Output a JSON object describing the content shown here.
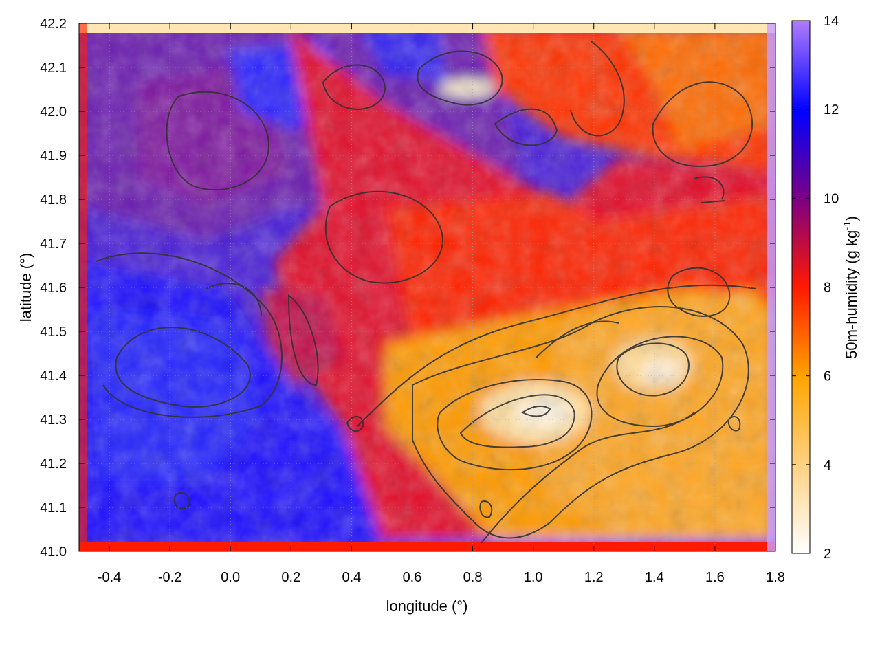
{
  "chart_data": {
    "type": "heatmap",
    "title": "",
    "xlabel": "longitude (°)",
    "ylabel": "latitude (°)",
    "xlim": [
      -0.5,
      1.8
    ],
    "ylim": [
      41.0,
      42.2
    ],
    "xticks": [
      "-0.4",
      "-0.2",
      "0.0",
      "0.2",
      "0.4",
      "0.6",
      "0.8",
      "1.0",
      "1.2",
      "1.4",
      "1.6",
      "1.8"
    ],
    "xtick_values": [
      -0.4,
      -0.2,
      0.0,
      0.2,
      0.4,
      0.6,
      0.8,
      1.0,
      1.2,
      1.4,
      1.6,
      1.8
    ],
    "yticks": [
      "41.0",
      "41.1",
      "41.2",
      "41.3",
      "41.4",
      "41.5",
      "41.6",
      "41.7",
      "41.8",
      "41.9",
      "42.0",
      "42.1",
      "42.2"
    ],
    "ytick_values": [
      41.0,
      41.1,
      41.2,
      41.3,
      41.4,
      41.5,
      41.6,
      41.7,
      41.8,
      41.9,
      42.0,
      42.1,
      42.2
    ],
    "grid": true,
    "colorbar": {
      "label": "50m-humidity (g kg",
      "label_exponent": "-1",
      "label_tail": ")",
      "range": [
        2,
        14
      ],
      "ticks": [
        "2",
        "4",
        "6",
        "8",
        "10",
        "12",
        "14"
      ],
      "tick_values": [
        2,
        4,
        6,
        8,
        10,
        12,
        14
      ],
      "colors": [
        "#ffffff",
        "#ffa500",
        "#ff0000",
        "#800080",
        "#0000ff",
        "#b07cff"
      ]
    },
    "regions": {
      "dry_southeast_min": 2.5,
      "dry_southeast_typical": 5,
      "humid_west_typical": 11,
      "transition_band": 8,
      "northeast_typical": 6.5
    }
  }
}
